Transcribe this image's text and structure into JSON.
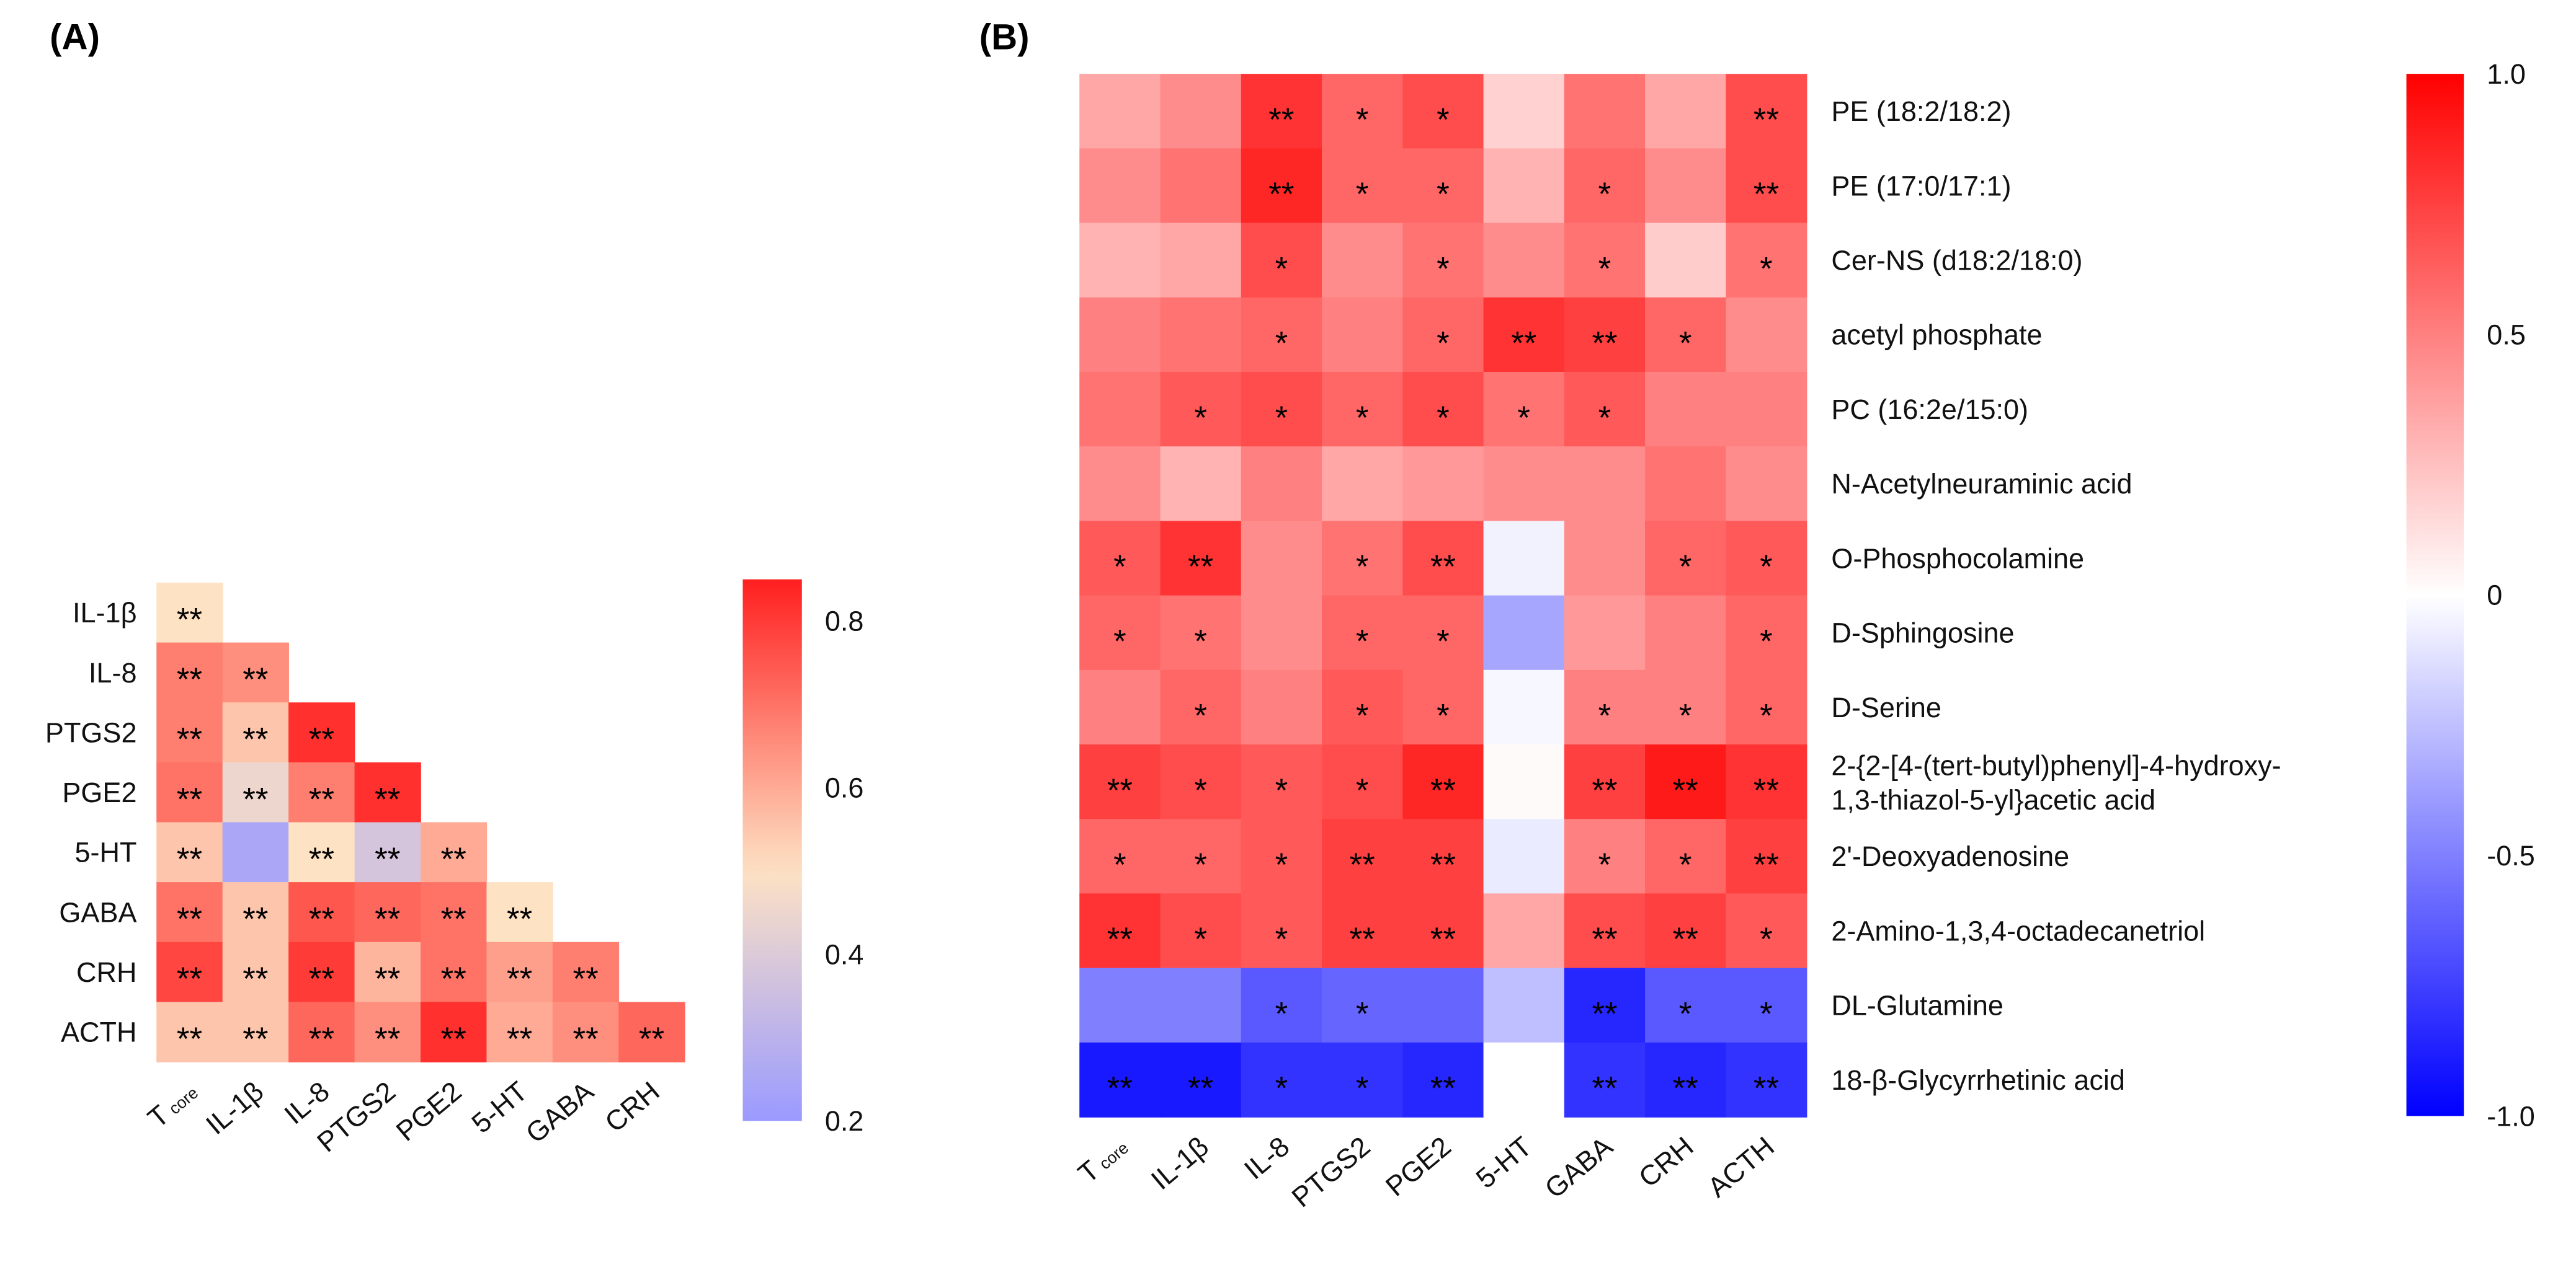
{
  "chart_data": [
    {
      "type": "heatmap",
      "panel_label": "(A)",
      "rows": [
        "IL-1β",
        "IL-8",
        "PTGS2",
        "PGE2",
        "5-HT",
        "GABA",
        "CRH",
        "ACTH"
      ],
      "columns": [
        {
          "text": "T",
          "sub": "core"
        },
        {
          "text": "IL-1β"
        },
        {
          "text": "IL-8"
        },
        {
          "text": "PTGS2"
        },
        {
          "text": "PGE2"
        },
        {
          "text": "5-HT"
        },
        {
          "text": "GABA"
        },
        {
          "text": "CRH"
        }
      ],
      "values": [
        [
          0.5
        ],
        [
          0.68,
          0.65
        ],
        [
          0.68,
          0.55,
          0.82
        ],
        [
          0.7,
          0.45,
          0.68,
          0.82
        ],
        [
          0.55,
          0.25,
          0.5,
          0.38,
          0.6
        ],
        [
          0.7,
          0.55,
          0.75,
          0.72,
          0.7,
          0.5
        ],
        [
          0.78,
          0.55,
          0.8,
          0.58,
          0.7,
          0.62,
          0.68
        ],
        [
          0.55,
          0.55,
          0.72,
          0.65,
          0.82,
          0.6,
          0.65,
          0.72
        ]
      ],
      "significance": [
        [
          "**"
        ],
        [
          "**",
          "**"
        ],
        [
          "**",
          "**",
          "**"
        ],
        [
          "**",
          "**",
          "**",
          "**"
        ],
        [
          "**",
          "",
          "**",
          "**",
          "**"
        ],
        [
          "**",
          "**",
          "**",
          "**",
          "**",
          "**"
        ],
        [
          "**",
          "**",
          "**",
          "**",
          "**",
          "**",
          "**"
        ],
        [
          "**",
          "**",
          "**",
          "**",
          "**",
          "**",
          "**",
          "**"
        ]
      ],
      "colorbar": {
        "range": [
          0.2,
          0.85
        ],
        "ticks": [
          "0.8",
          "0.6",
          "0.4",
          "0.2"
        ],
        "tick_values": [
          0.8,
          0.6,
          0.4,
          0.2
        ],
        "low": "#9a9aff",
        "mid": "#fde2c4",
        "high": "#ff1f1f"
      }
    },
    {
      "type": "heatmap",
      "panel_label": "(B)",
      "rows": [
        "PE (18:2/18:2)",
        "PE (17:0/17:1)",
        "Cer-NS (d18:2/18:0)",
        "acetyl phosphate",
        "PC (16:2e/15:0)",
        "N-Acetylneuraminic acid",
        "O-Phosphocolamine",
        "D-Sphingosine",
        "D-Serine",
        "2-{2-[4-(tert-butyl)phenyl]-4-hydroxy-|1,3-thiazol-5-yl}acetic acid",
        "2'-Deoxyadenosine",
        "2-Amino-1,3,4-octadecanetriol",
        "DL-Glutamine",
        "18-β-Glycyrrhetinic acid"
      ],
      "columns": [
        {
          "text": "T",
          "sub": "core"
        },
        {
          "text": "IL-1β"
        },
        {
          "text": "IL-8"
        },
        {
          "text": "PTGS2"
        },
        {
          "text": "PGE2"
        },
        {
          "text": "5-HT"
        },
        {
          "text": "GABA"
        },
        {
          "text": "CRH"
        },
        {
          "text": "ACTH"
        }
      ],
      "values": [
        [
          0.35,
          0.45,
          0.8,
          0.6,
          0.7,
          0.18,
          0.55,
          0.35,
          0.7
        ],
        [
          0.45,
          0.55,
          0.85,
          0.6,
          0.6,
          0.3,
          0.6,
          0.45,
          0.7
        ],
        [
          0.3,
          0.35,
          0.7,
          0.45,
          0.55,
          0.45,
          0.55,
          0.2,
          0.55
        ],
        [
          0.5,
          0.55,
          0.6,
          0.5,
          0.6,
          0.8,
          0.75,
          0.6,
          0.45
        ],
        [
          0.55,
          0.65,
          0.7,
          0.6,
          0.7,
          0.55,
          0.65,
          0.5,
          0.5
        ],
        [
          0.45,
          0.3,
          0.5,
          0.35,
          0.4,
          0.45,
          0.45,
          0.55,
          0.45
        ],
        [
          0.65,
          0.8,
          0.45,
          0.55,
          0.7,
          -0.05,
          0.45,
          0.6,
          0.65
        ],
        [
          0.6,
          0.55,
          0.45,
          0.6,
          0.6,
          -0.35,
          0.4,
          0.5,
          0.6
        ],
        [
          0.5,
          0.6,
          0.5,
          0.65,
          0.6,
          -0.03,
          0.5,
          0.5,
          0.6
        ],
        [
          0.75,
          0.7,
          0.65,
          0.7,
          0.85,
          0.02,
          0.75,
          0.9,
          0.8
        ],
        [
          0.6,
          0.6,
          0.65,
          0.75,
          0.75,
          -0.08,
          0.5,
          0.6,
          0.75
        ],
        [
          0.8,
          0.7,
          0.65,
          0.75,
          0.75,
          0.35,
          0.7,
          0.75,
          0.65
        ],
        [
          -0.5,
          -0.5,
          -0.65,
          -0.6,
          -0.6,
          -0.25,
          -0.85,
          -0.65,
          -0.65
        ],
        [
          -0.9,
          -0.9,
          -0.8,
          -0.8,
          -0.85,
          0.0,
          -0.8,
          -0.85,
          -0.8
        ]
      ],
      "significance": [
        [
          "",
          "",
          "**",
          "*",
          "*",
          "",
          "",
          "",
          "**"
        ],
        [
          "",
          "",
          "**",
          "*",
          "*",
          "",
          "*",
          "",
          "**"
        ],
        [
          "",
          "",
          "*",
          "",
          "*",
          "",
          "*",
          "",
          "*"
        ],
        [
          "",
          "",
          "*",
          "",
          "*",
          "**",
          "**",
          "*",
          ""
        ],
        [
          "",
          "*",
          "*",
          "*",
          "*",
          "*",
          "*",
          "",
          ""
        ],
        [
          "",
          "",
          "",
          "",
          "",
          "",
          "",
          "",
          ""
        ],
        [
          "*",
          "**",
          "",
          "*",
          "**",
          "",
          "",
          "*",
          "*"
        ],
        [
          "*",
          "*",
          "",
          "*",
          "*",
          "",
          "",
          "",
          "*"
        ],
        [
          "",
          "*",
          "",
          "*",
          "*",
          "",
          "*",
          "*",
          "*"
        ],
        [
          "**",
          "*",
          "*",
          "*",
          "**",
          "",
          "**",
          "**",
          "**"
        ],
        [
          "*",
          "*",
          "*",
          "**",
          "**",
          "",
          "*",
          "*",
          "**"
        ],
        [
          "**",
          "*",
          "*",
          "**",
          "**",
          "",
          "**",
          "**",
          "*"
        ],
        [
          "",
          "",
          "*",
          "*",
          "",
          "",
          "**",
          "*",
          "*"
        ],
        [
          "**",
          "**",
          "*",
          "*",
          "**",
          "",
          "**",
          "**",
          "**"
        ]
      ],
      "colorbar": {
        "range": [
          -1,
          1
        ],
        "ticks": [
          "1.0",
          "0.5",
          "0",
          "-0.5",
          "-1.0"
        ],
        "tick_values": [
          1,
          0.5,
          0,
          -0.5,
          -1
        ],
        "low": "#0000ff",
        "mid": "#ffffff",
        "high": "#ff0000"
      }
    }
  ]
}
